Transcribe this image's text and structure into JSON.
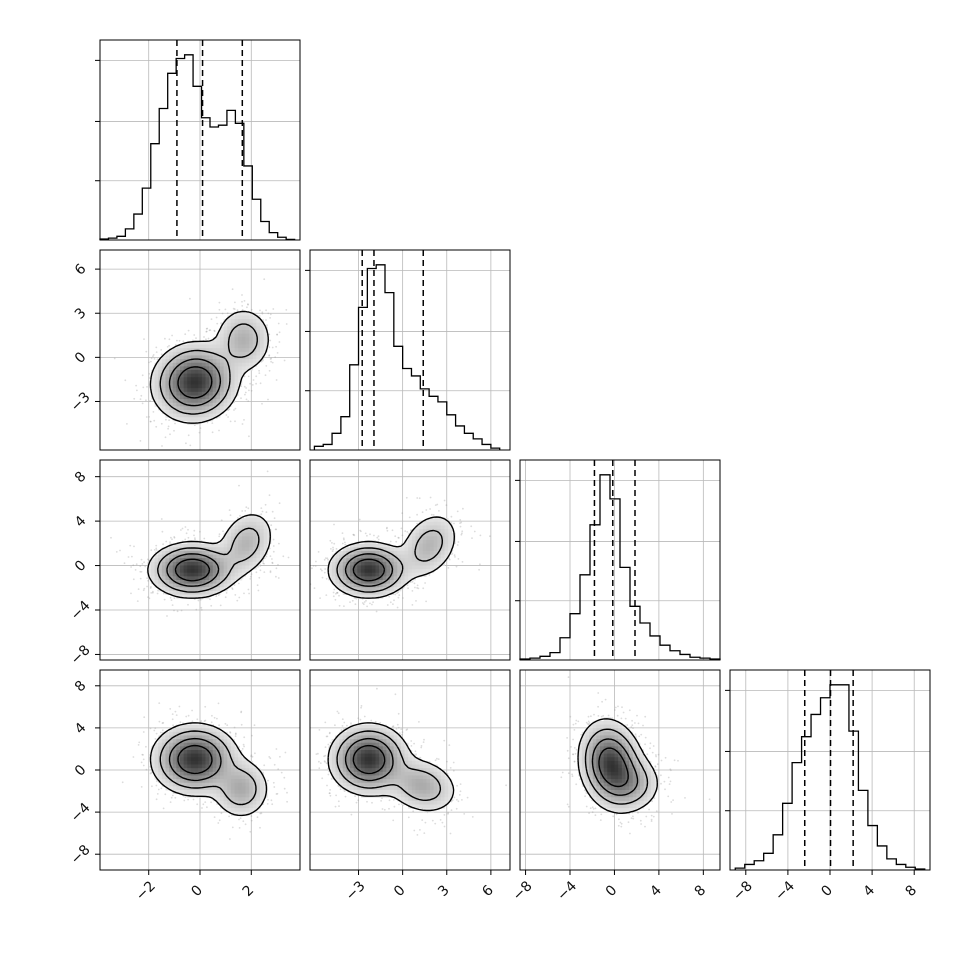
{
  "chart_data": {
    "type": "corner",
    "title": "",
    "num_params": 4,
    "params": [
      {
        "ticks": [
          -2,
          0,
          2
        ],
        "tick_labels": [
          "−2",
          "0",
          "2"
        ],
        "range": [
          -3.9,
          3.9
        ],
        "hist_ticks": [
          "",
          "",
          ""
        ]
      },
      {
        "ticks": [
          -3,
          0,
          3,
          6
        ],
        "tick_labels": [
          "−3",
          "0",
          "3",
          "6"
        ],
        "range": [
          -6.3,
          7.3
        ]
      },
      {
        "ticks": [
          -8,
          -4,
          0,
          4,
          8
        ],
        "tick_labels": [
          "−8",
          "−4",
          "0",
          "4",
          "8"
        ],
        "range": [
          -8.5,
          9.5
        ]
      },
      {
        "ticks": [
          -8,
          -4,
          0,
          4,
          8
        ],
        "tick_labels": [
          "−8",
          "−4",
          "0",
          "4",
          "8"
        ],
        "range": [
          -9.5,
          9.5
        ]
      }
    ],
    "histograms": [
      {
        "param": 0,
        "bin_edges": [
          -3.9,
          -3.57,
          -3.24,
          -2.91,
          -2.58,
          -2.25,
          -1.92,
          -1.59,
          -1.26,
          -0.93,
          -0.6,
          -0.27,
          0.06,
          0.39,
          0.72,
          1.05,
          1.38,
          1.71,
          2.04,
          2.37,
          2.7,
          3.03,
          3.36,
          3.69
        ],
        "counts": [
          0.5,
          1.0,
          2.0,
          6.0,
          14.0,
          28.0,
          52.0,
          71.0,
          90.0,
          98.0,
          100.0,
          83.0,
          66.0,
          61.0,
          62.0,
          70.0,
          63.0,
          40.0,
          22.0,
          10.0,
          4.0,
          1.5,
          0.3
        ],
        "quantiles": [
          -0.9,
          0.1,
          1.65
        ]
      },
      {
        "param": 1,
        "bin_edges": [
          -6.0,
          -5.4,
          -4.8,
          -4.2,
          -3.6,
          -3.0,
          -2.4,
          -1.8,
          -1.2,
          -0.6,
          0.0,
          0.6,
          1.2,
          1.8,
          2.4,
          3.0,
          3.6,
          4.2,
          4.8,
          5.4,
          6.0,
          6.6
        ],
        "counts": [
          2.0,
          3.0,
          9.0,
          18.0,
          46.0,
          77.0,
          98.0,
          100.0,
          85.0,
          56.0,
          44.0,
          40.0,
          33.0,
          29.0,
          26.0,
          19.0,
          13.0,
          9.0,
          6.0,
          3.0,
          1.0
        ],
        "quantiles": [
          -2.75,
          -1.95,
          1.4
        ]
      },
      {
        "param": 2,
        "bin_edges": [
          -8.5,
          -7.6,
          -6.7,
          -5.8,
          -4.9,
          -4.0,
          -3.1,
          -2.2,
          -1.3,
          -0.4,
          0.5,
          1.4,
          2.3,
          3.2,
          4.1,
          5.0,
          5.9,
          6.8,
          7.7,
          8.6,
          9.5
        ],
        "counts": [
          0.5,
          1.0,
          2.0,
          4.0,
          12.0,
          25.0,
          46.0,
          73.0,
          100.0,
          87.0,
          50.0,
          29.0,
          20.0,
          13.0,
          8.0,
          5.0,
          3.0,
          1.5,
          1.0,
          0.5
        ],
        "quantiles": [
          -1.8,
          -0.15,
          1.85
        ]
      },
      {
        "param": 3,
        "bin_edges": [
          -9.0,
          -8.1,
          -7.2,
          -6.3,
          -5.4,
          -4.5,
          -3.6,
          -2.7,
          -1.8,
          -0.9,
          0.0,
          0.9,
          1.8,
          2.7,
          3.6,
          4.5,
          5.4,
          6.3,
          7.2,
          8.1,
          9.0
        ],
        "counts": [
          1.0,
          3.0,
          5.0,
          9.0,
          19.0,
          36.0,
          58.0,
          72.0,
          84.0,
          93.0,
          100.0,
          100.0,
          75.0,
          43.0,
          24.0,
          13.0,
          6.0,
          3.0,
          1.5,
          0.5
        ],
        "quantiles": [
          -2.4,
          0.05,
          2.2
        ]
      }
    ],
    "contour_pairs": [
      {
        "x_param": 0,
        "y_param": 1,
        "components": [
          {
            "mx": -0.2,
            "my": -1.7,
            "sx": 0.75,
            "sy": 1.2,
            "rho": 0.05,
            "w": 1.0
          },
          {
            "mx": 1.7,
            "my": 1.2,
            "sx": 0.55,
            "sy": 1.1,
            "rho": 0.0,
            "w": 0.32
          }
        ]
      },
      {
        "x_param": 0,
        "y_param": 2,
        "components": [
          {
            "mx": -0.3,
            "my": -0.4,
            "sx": 0.75,
            "sy": 1.1,
            "rho": 0.0,
            "w": 1.0
          },
          {
            "mx": 1.8,
            "my": 2.0,
            "sx": 0.55,
            "sy": 1.5,
            "rho": 0.25,
            "w": 0.3
          }
        ]
      },
      {
        "x_param": 1,
        "y_param": 2,
        "components": [
          {
            "mx": -2.3,
            "my": -0.4,
            "sx": 1.2,
            "sy": 1.1,
            "rho": 0.0,
            "w": 1.0
          },
          {
            "mx": 1.8,
            "my": 1.8,
            "sx": 1.0,
            "sy": 1.5,
            "rho": 0.3,
            "w": 0.3
          }
        ]
      },
      {
        "x_param": 0,
        "y_param": 3,
        "components": [
          {
            "mx": -0.2,
            "my": 1.0,
            "sx": 0.75,
            "sy": 1.5,
            "rho": 0.0,
            "w": 1.0
          },
          {
            "mx": 1.6,
            "my": -1.8,
            "sx": 0.55,
            "sy": 1.4,
            "rho": 0.0,
            "w": 0.35
          }
        ]
      },
      {
        "x_param": 1,
        "y_param": 3,
        "components": [
          {
            "mx": -2.3,
            "my": 1.0,
            "sx": 1.2,
            "sy": 1.5,
            "rho": 0.0,
            "w": 1.0
          },
          {
            "mx": 1.3,
            "my": -1.5,
            "sx": 1.2,
            "sy": 1.3,
            "rho": -0.2,
            "w": 0.35
          }
        ]
      },
      {
        "x_param": 2,
        "y_param": 3,
        "components": [
          {
            "mx": -0.3,
            "my": 0.5,
            "sx": 1.3,
            "sy": 1.9,
            "rho": -0.15,
            "w": 1.0
          },
          {
            "mx": 1.6,
            "my": -1.3,
            "sx": 1.3,
            "sy": 1.3,
            "rho": 0.0,
            "w": 0.3
          }
        ]
      }
    ],
    "contour_levels": [
      0.68,
      0.42,
      0.2,
      0.07
    ],
    "grid": true,
    "style": {
      "line_color": "#000000",
      "grid_color": "#b9b9b9",
      "point_color": "#9a9a9a"
    }
  }
}
